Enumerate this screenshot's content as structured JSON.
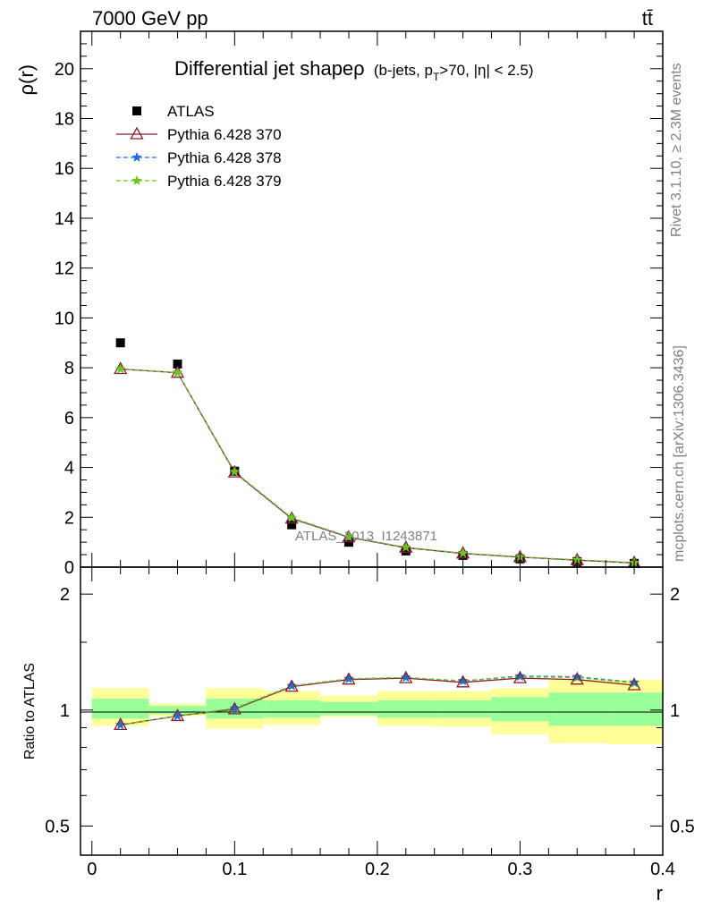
{
  "header": {
    "energy_label": "7000 GeV pp",
    "process_label": "tt̄",
    "side_label_top": "Rivet 3.1.10, ≥ 2.3M events",
    "side_label_bottom": "mcplots.cern.ch [arXiv:1306.3436]"
  },
  "chart_data": [
    {
      "type": "scatter",
      "title": "Differential jet shapeρ",
      "title_sub": "(b-jets, p",
      "title_sub_T": "T",
      "title_sub_rest": ">70, |η| < 2.5)",
      "ylabel": "ρ(r)",
      "xlabel": "",
      "xlim": [
        -0.008,
        0.4
      ],
      "ylim": [
        0,
        21.5
      ],
      "yticks": [
        0,
        2,
        4,
        6,
        8,
        10,
        12,
        14,
        16,
        18,
        20
      ],
      "tick_labels": [
        "0",
        "2",
        "4",
        "6",
        "8",
        "10",
        "12",
        "14",
        "16",
        "18",
        "20"
      ],
      "watermark": "ATLAS_2013_I1243871",
      "legend_position": "top-left",
      "x": [
        0.02,
        0.06,
        0.1,
        0.14,
        0.18,
        0.22,
        0.26,
        0.3,
        0.34,
        0.38
      ],
      "series": [
        {
          "name": "ATLAS",
          "color": "#000000",
          "marker": "square",
          "values": [
            9.0,
            8.15,
            3.85,
            1.7,
            1.0,
            0.65,
            0.47,
            0.33,
            0.22,
            0.15
          ]
        },
        {
          "name": "Pythia 6.428 370",
          "color": "#8b1a2b",
          "marker": "triangle",
          "values": [
            7.95,
            7.8,
            3.8,
            1.95,
            1.2,
            0.78,
            0.55,
            0.4,
            0.28,
            0.17
          ]
        },
        {
          "name": "Pythia 6.428 378",
          "color": "#1a6fdb",
          "marker": "star",
          "dash": true,
          "values": [
            7.95,
            7.8,
            3.82,
            1.97,
            1.21,
            0.79,
            0.55,
            0.41,
            0.29,
            0.17
          ]
        },
        {
          "name": "Pythia 6.428 379",
          "color": "#6cc61a",
          "marker": "star",
          "dash": true,
          "values": [
            7.95,
            7.8,
            3.83,
            1.98,
            1.22,
            0.79,
            0.56,
            0.41,
            0.29,
            0.18
          ]
        }
      ]
    },
    {
      "type": "line",
      "ylabel": "Ratio to ATLAS",
      "xlabel": "r",
      "xlim": [
        -0.008,
        0.4
      ],
      "ylim": [
        0.42,
        2.35
      ],
      "y_scale": "log",
      "yticks": [
        0.5,
        1,
        2
      ],
      "tick_labels": [
        "0.5",
        "1",
        "2"
      ],
      "xticks": [
        0,
        0.1,
        0.2,
        0.3,
        0.4
      ],
      "xtick_labels": [
        "0",
        "0.1",
        "0.2",
        "0.3",
        "0.4"
      ],
      "x": [
        0.02,
        0.06,
        0.1,
        0.14,
        0.18,
        0.22,
        0.26,
        0.3,
        0.34,
        0.38
      ],
      "bins": [
        [
          0.0,
          0.04
        ],
        [
          0.04,
          0.08
        ],
        [
          0.08,
          0.12
        ],
        [
          0.12,
          0.16
        ],
        [
          0.16,
          0.2
        ],
        [
          0.2,
          0.24
        ],
        [
          0.24,
          0.28
        ],
        [
          0.28,
          0.32
        ],
        [
          0.32,
          0.36
        ],
        [
          0.36,
          0.4
        ]
      ],
      "band_green": [
        [
          0.95,
          1.07
        ],
        [
          0.975,
          1.025
        ],
        [
          0.95,
          1.07
        ],
        [
          0.955,
          1.06
        ],
        [
          0.97,
          1.05
        ],
        [
          0.955,
          1.06
        ],
        [
          0.955,
          1.06
        ],
        [
          0.935,
          1.08
        ],
        [
          0.91,
          1.11
        ],
        [
          0.91,
          1.11
        ]
      ],
      "band_yellow": [
        [
          0.91,
          1.14
        ],
        [
          0.965,
          1.04
        ],
        [
          0.895,
          1.14
        ],
        [
          0.915,
          1.12
        ],
        [
          0.96,
          1.09
        ],
        [
          0.91,
          1.12
        ],
        [
          0.905,
          1.12
        ],
        [
          0.865,
          1.14
        ],
        [
          0.82,
          1.2
        ],
        [
          0.815,
          1.2
        ]
      ],
      "series": [
        {
          "name": "Pythia 6.428 370",
          "color": "#8b1a2b",
          "marker": "triangle",
          "values": [
            0.915,
            0.965,
            1.005,
            1.15,
            1.2,
            1.21,
            1.18,
            1.21,
            1.2,
            1.16
          ]
        },
        {
          "name": "Pythia 6.428 378",
          "color": "#1a6fdb",
          "marker": "star",
          "dash": true,
          "values": [
            0.915,
            0.965,
            1.01,
            1.155,
            1.205,
            1.215,
            1.19,
            1.225,
            1.22,
            1.18
          ]
        },
        {
          "name": "Pythia 6.428 379",
          "color": "#6cc61a",
          "marker": "star",
          "dash": true,
          "values": [
            0.915,
            0.965,
            1.01,
            1.155,
            1.205,
            1.215,
            1.19,
            1.22,
            1.215,
            1.175
          ]
        }
      ]
    }
  ]
}
